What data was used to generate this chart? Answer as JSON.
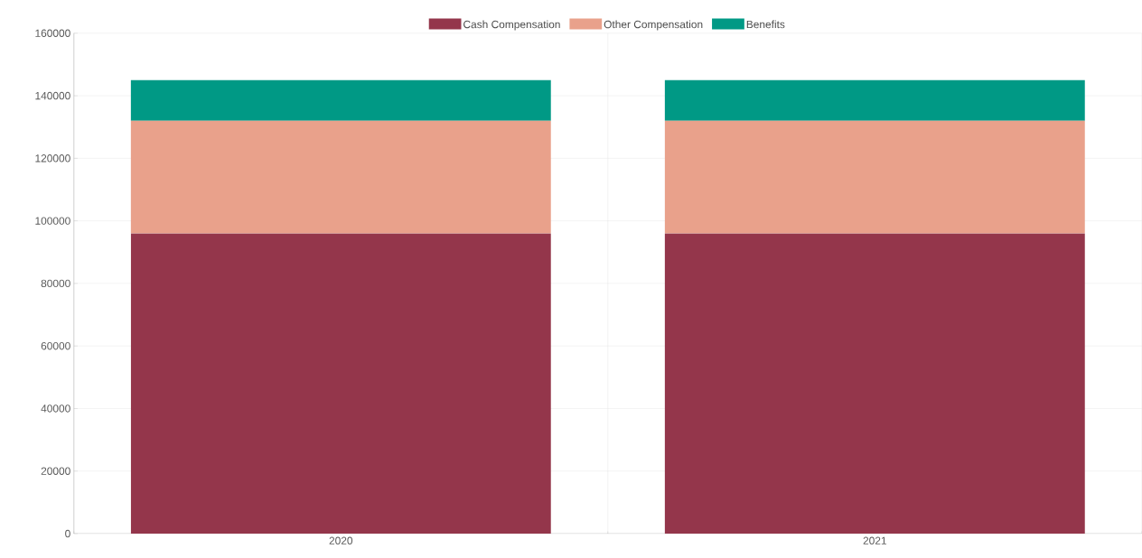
{
  "chart_data": {
    "type": "bar",
    "stacked": true,
    "categories": [
      "2020",
      "2021"
    ],
    "series": [
      {
        "name": "Cash Compensation",
        "color": "#94364b",
        "values": [
          96000,
          96000
        ]
      },
      {
        "name": "Other Compensation",
        "color": "#e9a18b",
        "values": [
          36000,
          36000
        ]
      },
      {
        "name": "Benefits",
        "color": "#009985",
        "values": [
          13000,
          13000
        ]
      }
    ],
    "ylim": [
      0,
      160000
    ],
    "yticks": [
      0,
      20000,
      40000,
      60000,
      80000,
      100000,
      120000,
      140000,
      160000
    ],
    "grid": true,
    "legend": "top"
  }
}
